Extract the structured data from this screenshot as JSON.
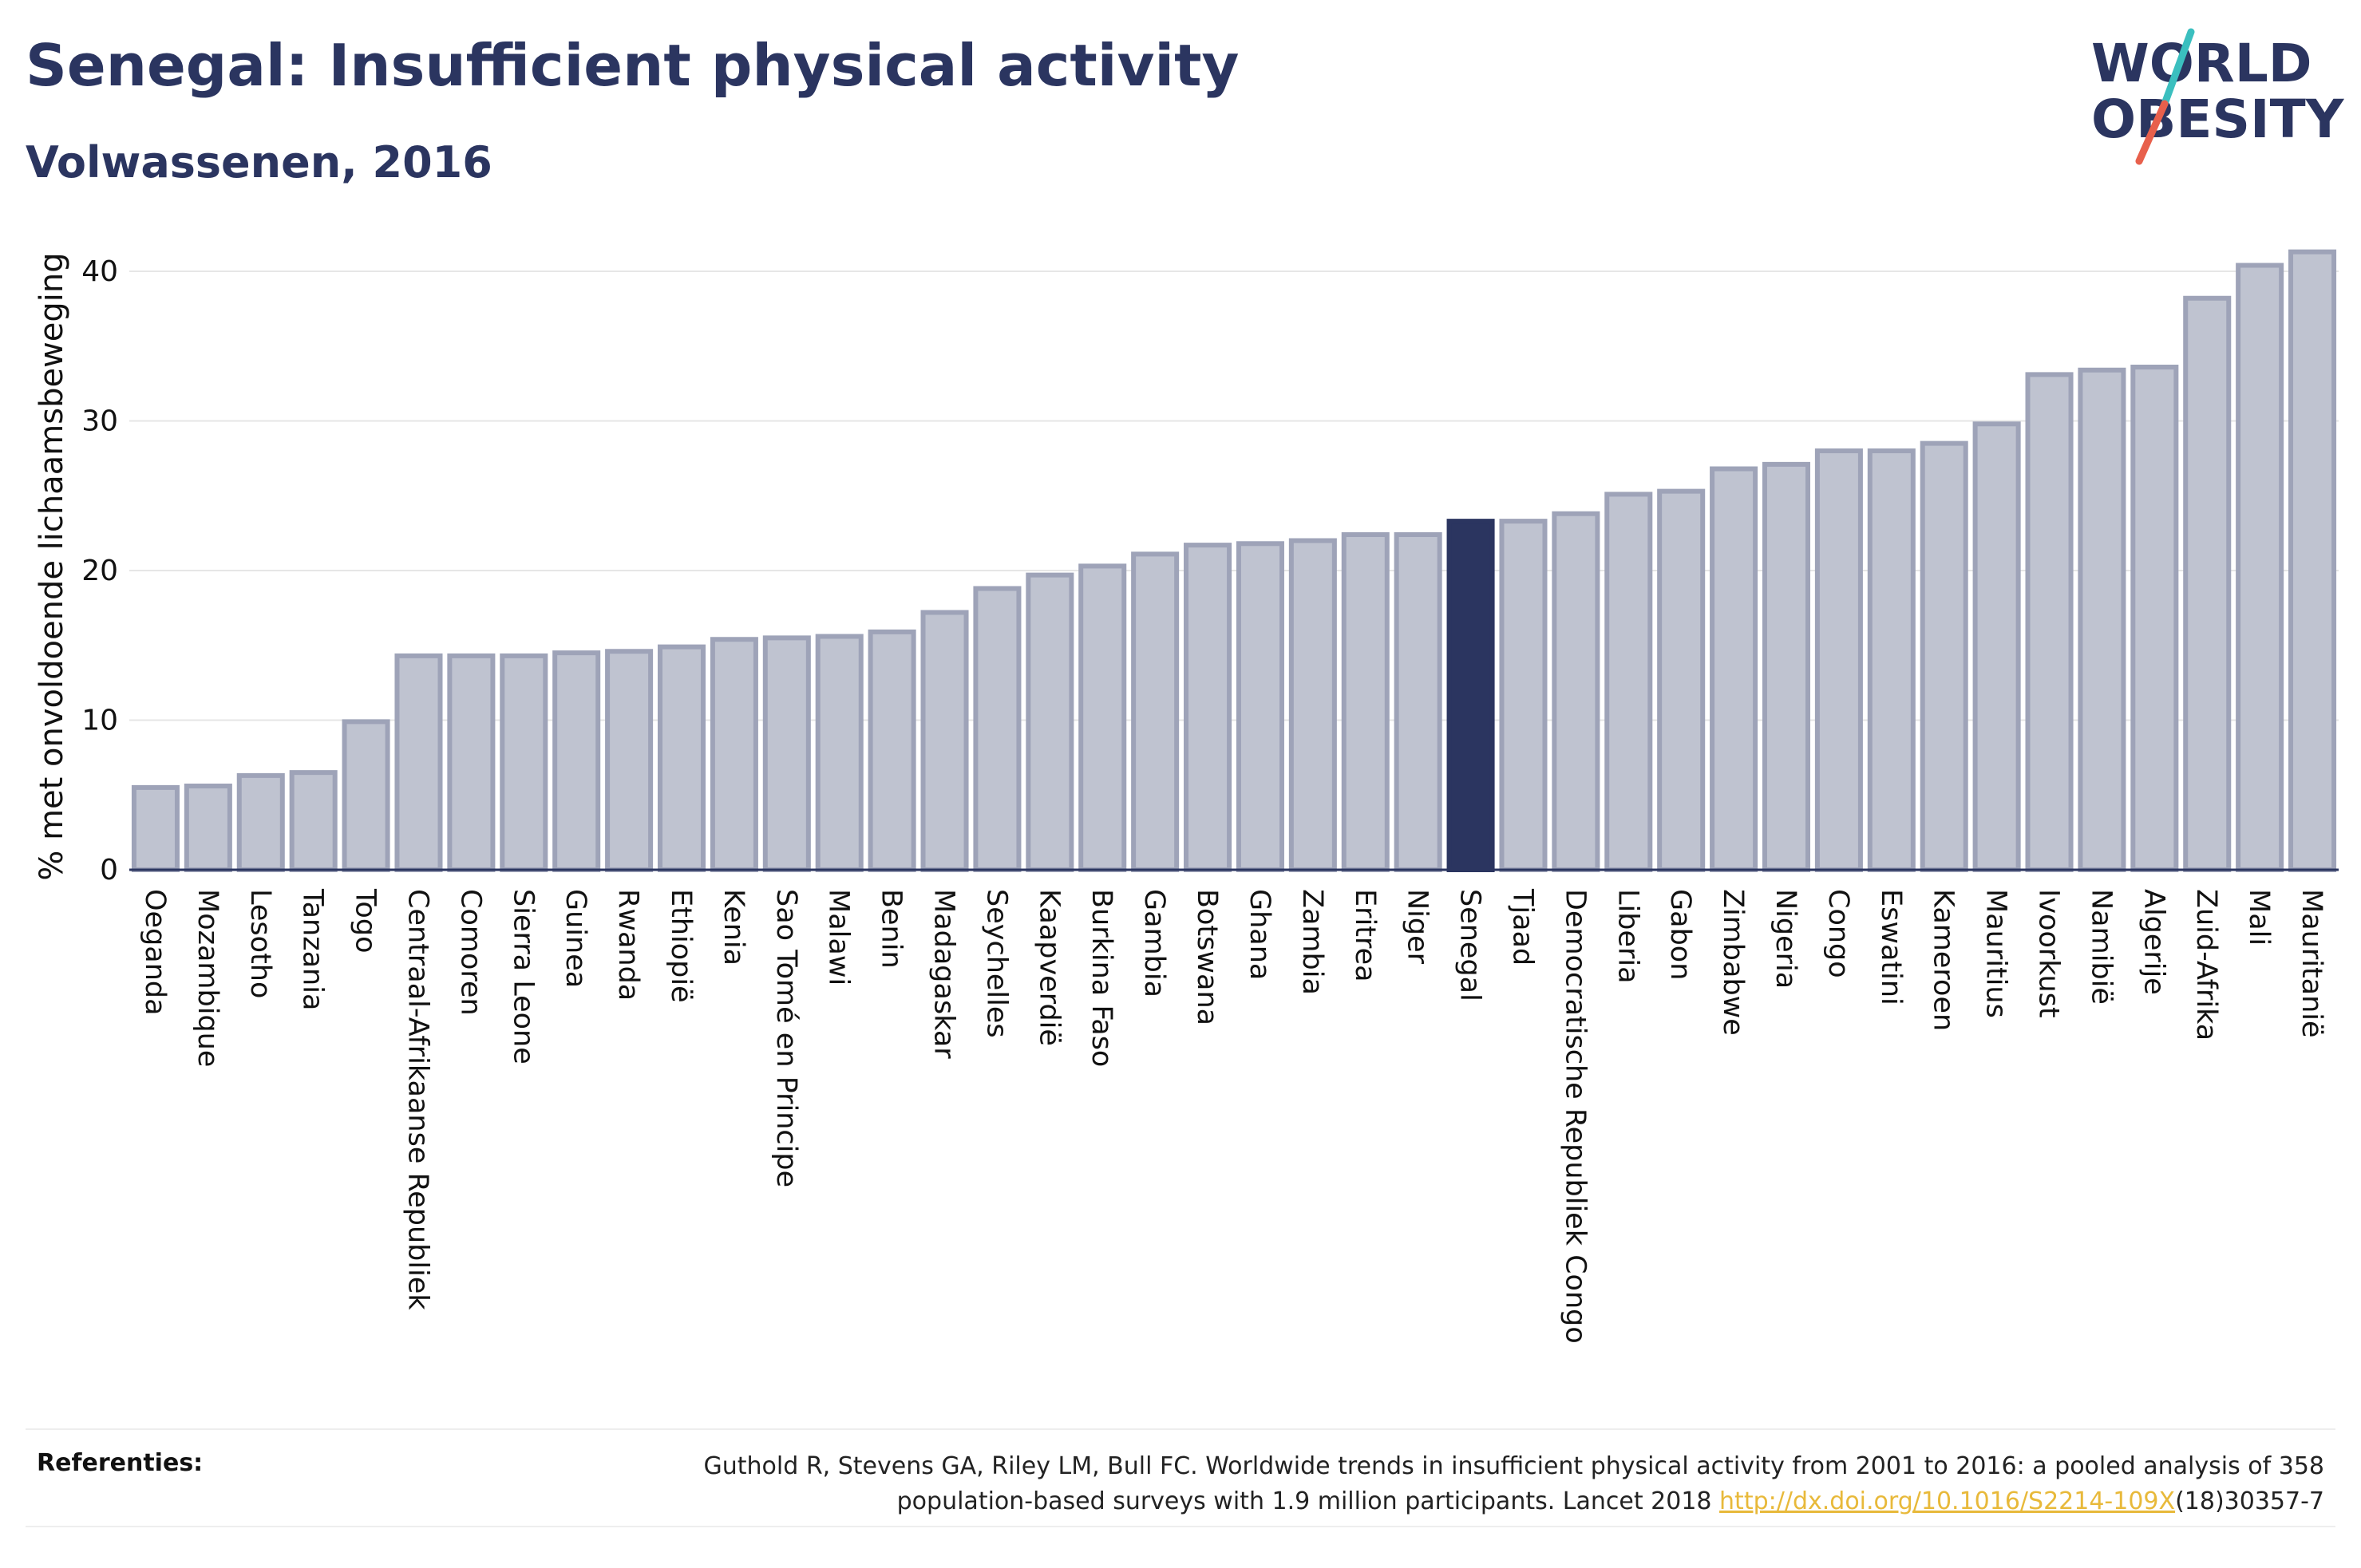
{
  "header": {
    "title": "Senegal: Insufficient physical activity",
    "subtitle": "Volwassenen, 2016"
  },
  "logo": {
    "line1": "WORLD",
    "line2": "OBESITY",
    "brand_color": "#2b3560",
    "slash_color_top": "#3bbfbf",
    "slash_color_bottom": "#e8604c"
  },
  "colors": {
    "bar_fill": "#bfc3d0",
    "bar_stroke": "#9ea3b8",
    "highlight": "#2b3560",
    "grid": "#e6e6e6"
  },
  "chart_data": {
    "type": "bar",
    "ylabel": "% met onvoldoende lichaamsbeweging",
    "xlabel": "",
    "ylim": [
      0,
      43
    ],
    "yticks": [
      0,
      10,
      20,
      30,
      40
    ],
    "highlight_category": "Senegal",
    "categories": [
      "Oeganda",
      "Mozambique",
      "Lesotho",
      "Tanzania",
      "Togo",
      "Centraal-Afrikaanse Republiek",
      "Comoren",
      "Sierra Leone",
      "Guinea",
      "Rwanda",
      "Ethiopië",
      "Kenia",
      "Sao Tomé en Principe",
      "Malawi",
      "Benin",
      "Madagaskar",
      "Seychelles",
      "Kaapverdië",
      "Burkina Faso",
      "Gambia",
      "Botswana",
      "Ghana",
      "Zambia",
      "Eritrea",
      "Niger",
      "Senegal",
      "Tjaad",
      "Democratische Republiek Congo",
      "Liberia",
      "Gabon",
      "Zimbabwe",
      "Nigeria",
      "Congo",
      "Eswatini",
      "Kameroen",
      "Mauritius",
      "Ivoorkust",
      "Namibië",
      "Algerije",
      "Zuid-Afrika",
      "Mali",
      "Mauritanië"
    ],
    "values": [
      5.5,
      5.6,
      6.3,
      6.5,
      9.9,
      14.3,
      14.3,
      14.3,
      14.5,
      14.6,
      14.9,
      15.4,
      15.5,
      15.6,
      15.9,
      17.2,
      18.8,
      19.7,
      20.3,
      21.1,
      21.7,
      21.8,
      22.0,
      22.4,
      22.4,
      23.3,
      23.3,
      23.8,
      25.1,
      25.3,
      26.8,
      27.1,
      28.0,
      28.0,
      28.5,
      29.8,
      33.1,
      33.4,
      33.6,
      38.2,
      40.4,
      41.3
    ]
  },
  "footer": {
    "label": "Referenties:",
    "ref_before": "Guthold R, Stevens GA, Riley LM, Bull FC. Worldwide trends in insufficient physical activity from 2001 to 2016: a pooled analysis of 358 population-based surveys with 1.9 million participants. Lancet 2018 ",
    "ref_link": "http://dx.doi.org/10.1016/S2214-109X",
    "ref_after": "(18)30357-7"
  }
}
